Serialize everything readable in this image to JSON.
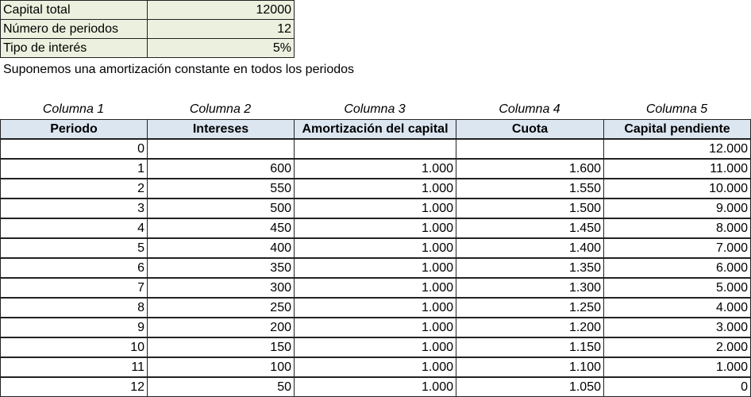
{
  "params": [
    {
      "label": "Capital total",
      "value": "12000"
    },
    {
      "label": "Número de periodos",
      "value": "12"
    },
    {
      "label": "Tipo de interés",
      "value": "5%"
    }
  ],
  "note": "Suponemos una amortización constante en todos los periodos",
  "column_labels": [
    "Columna 1",
    "Columna 2",
    "Columna 3",
    "Columna 4",
    "Columna 5"
  ],
  "headers": [
    "Periodo",
    "Intereses",
    "Amortización del capital",
    "Cuota",
    "Capital pendiente"
  ],
  "rows": [
    [
      "0",
      "",
      "",
      "",
      "12.000"
    ],
    [
      "1",
      "600",
      "1.000",
      "1.600",
      "11.000"
    ],
    [
      "2",
      "550",
      "1.000",
      "1.550",
      "10.000"
    ],
    [
      "3",
      "500",
      "1.000",
      "1.500",
      "9.000"
    ],
    [
      "4",
      "450",
      "1.000",
      "1.450",
      "8.000"
    ],
    [
      "5",
      "400",
      "1.000",
      "1.400",
      "7.000"
    ],
    [
      "6",
      "350",
      "1.000",
      "1.350",
      "6.000"
    ],
    [
      "7",
      "300",
      "1.000",
      "1.300",
      "5.000"
    ],
    [
      "8",
      "250",
      "1.000",
      "1.250",
      "4.000"
    ],
    [
      "9",
      "200",
      "1.000",
      "1.200",
      "3.000"
    ],
    [
      "10",
      "150",
      "1.000",
      "1.150",
      "2.000"
    ],
    [
      "11",
      "100",
      "1.000",
      "1.100",
      "1.000"
    ],
    [
      "12",
      "50",
      "1.000",
      "1.050",
      "0"
    ]
  ]
}
